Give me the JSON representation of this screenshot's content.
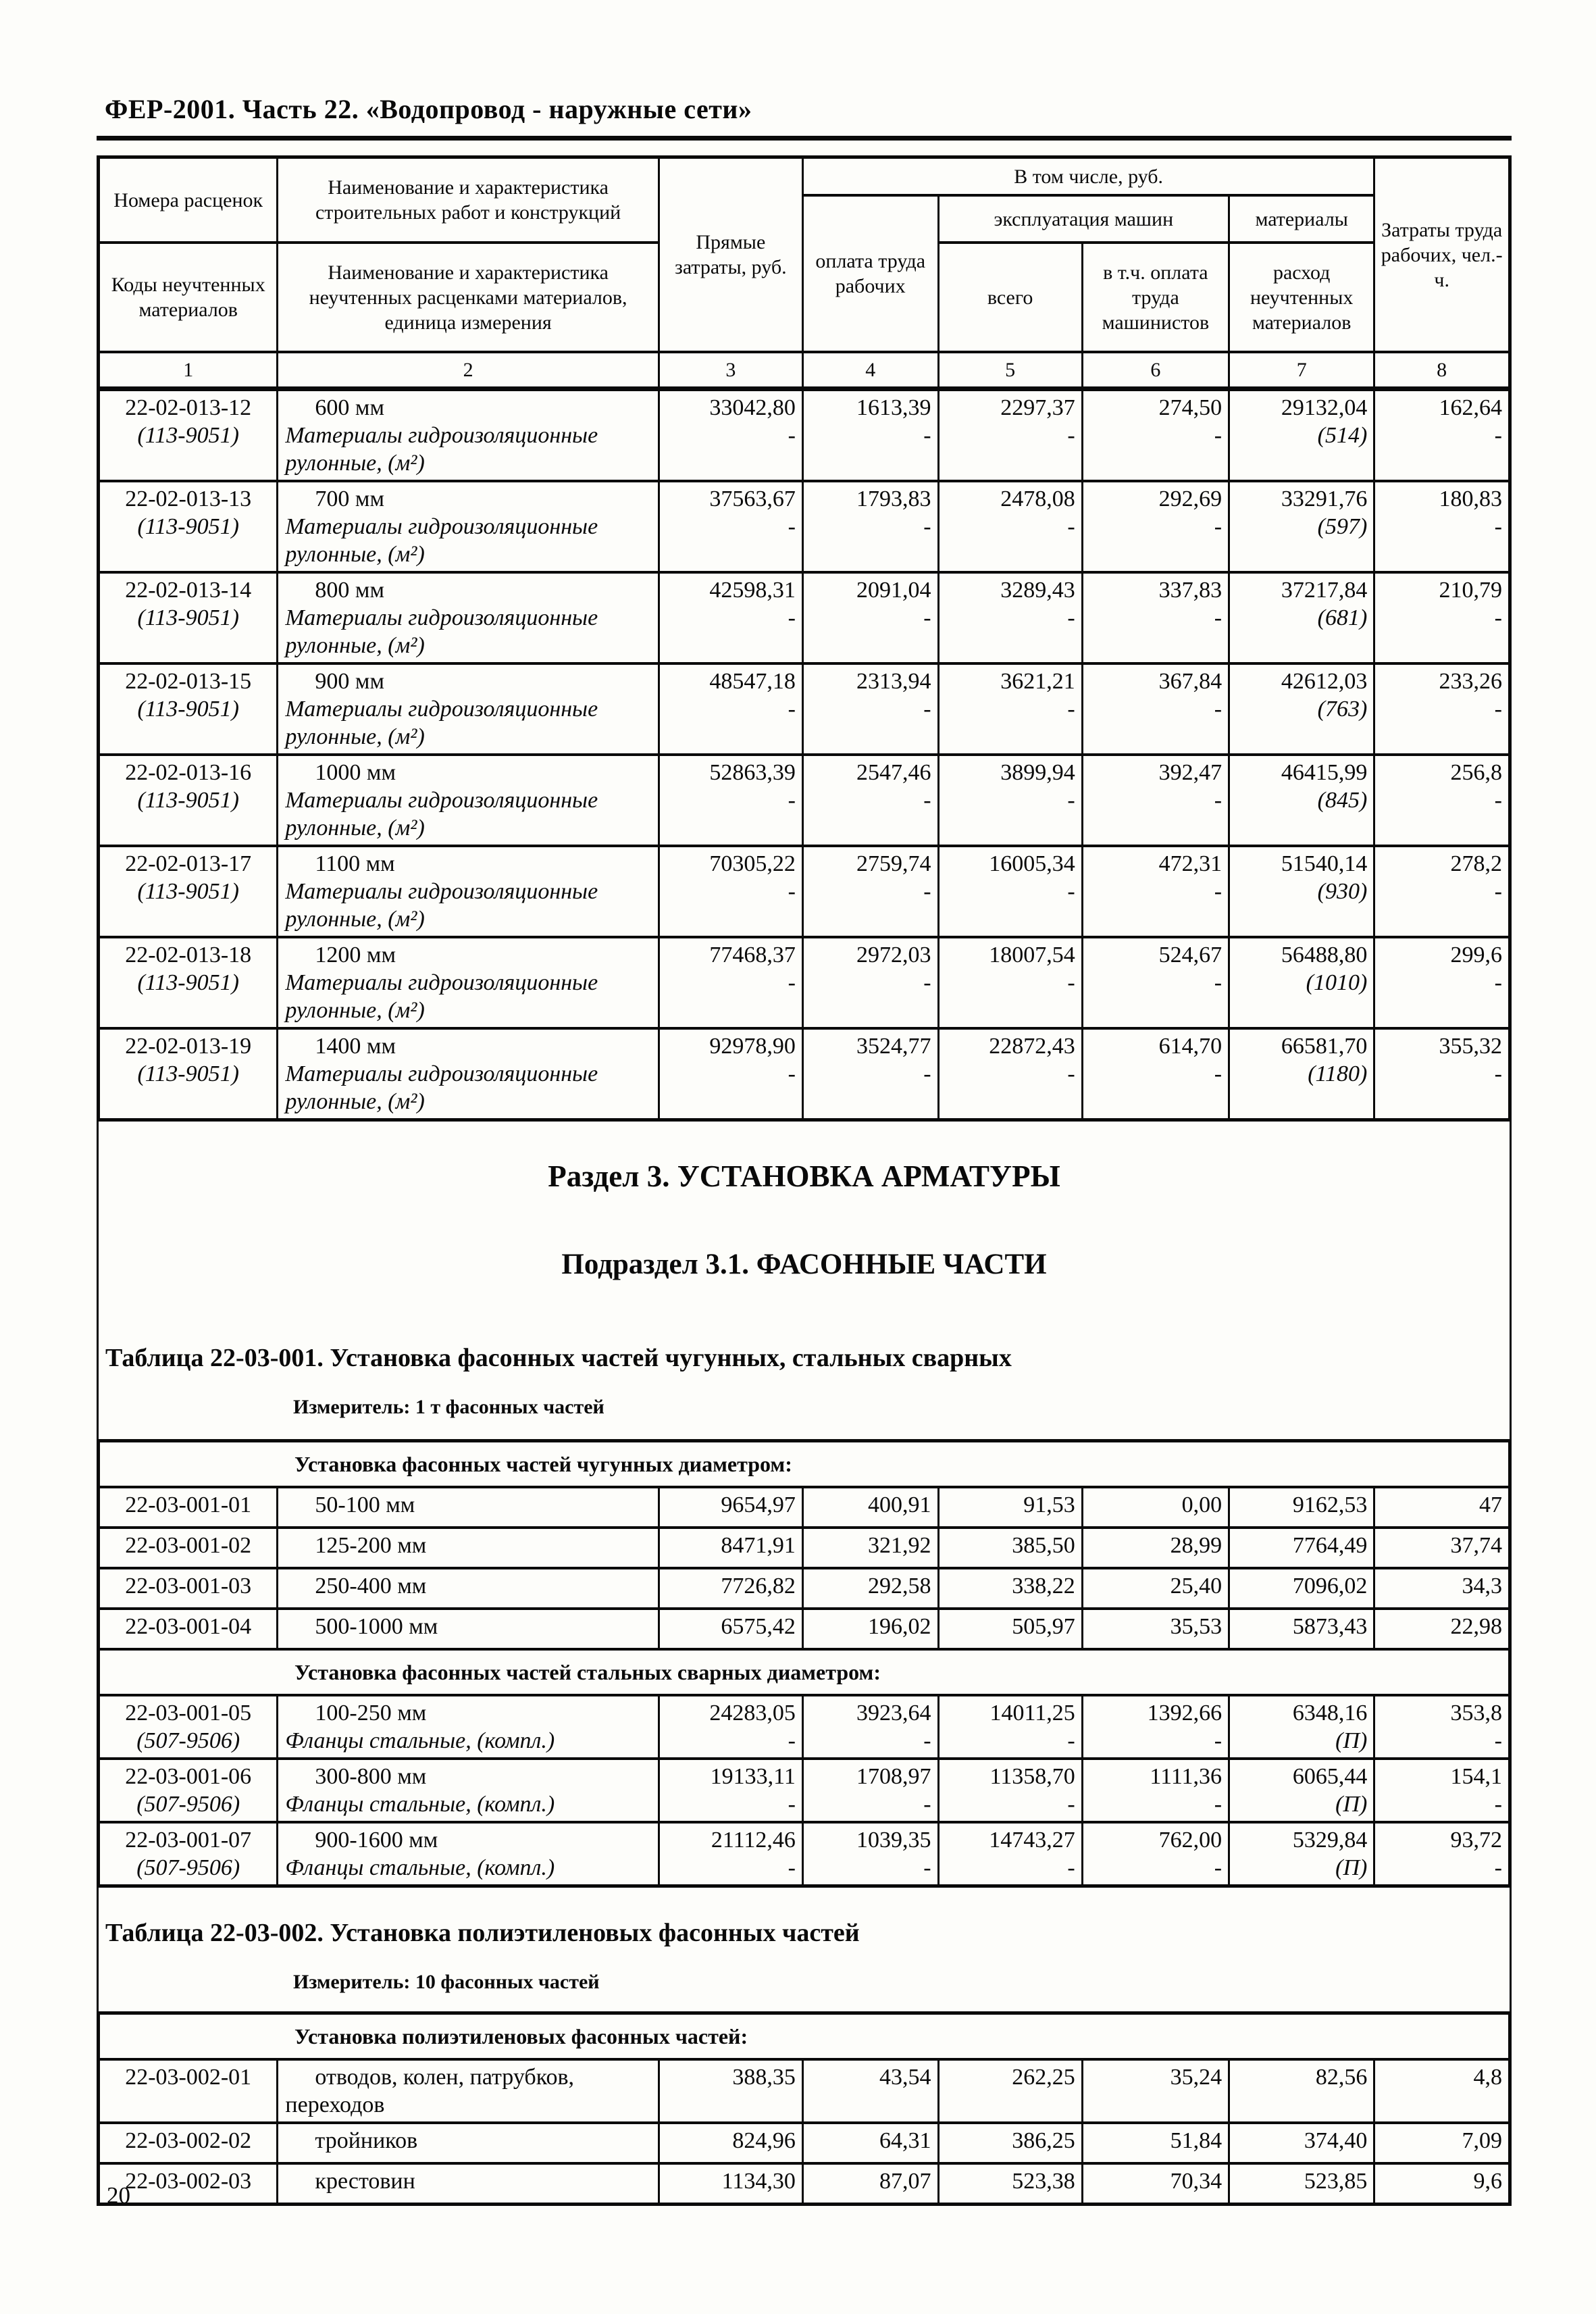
{
  "page": {
    "header": "ФЕР-2001. Часть 22. «Водопровод - наружные сети»",
    "number": "20"
  },
  "rates_table": {
    "header": {
      "col1_top": "Номера расценок",
      "col1_bottom": "Коды неучтенных материалов",
      "col2_top": "Наименование и характеристика строительных работ и конструкций",
      "col2_bottom": "Наименование и характеристика неучтенных расценками материалов, единица измерения",
      "col3": "Прямые затраты, руб.",
      "group4_7": "В том числе, руб.",
      "col4": "оплата труда рабочих",
      "group5_6": "эксплуатация машин",
      "col5": "всего",
      "col6": "в т.ч. оплата труда машинистов",
      "group7": "материалы",
      "col7": "расход неучтенных материалов",
      "col8": "Затраты труда рабочих, чел.-ч.",
      "numbers": [
        "1",
        "2",
        "3",
        "4",
        "5",
        "6",
        "7",
        "8"
      ]
    },
    "rows": [
      {
        "code": "22-02-013-12",
        "code2": "(113-9051)",
        "name": "600 мм",
        "name2": "Материалы гидроизоляционные рулонные, (м²)",
        "values": [
          "33042,80",
          "1613,39",
          "2297,37",
          "274,50",
          "29132,04",
          "162,64"
        ],
        "values2": [
          "-",
          "-",
          "-",
          "-",
          "(514)",
          "-"
        ]
      },
      {
        "code": "22-02-013-13",
        "code2": "(113-9051)",
        "name": "700 мм",
        "name2": "Материалы гидроизоляционные рулонные, (м²)",
        "values": [
          "37563,67",
          "1793,83",
          "2478,08",
          "292,69",
          "33291,76",
          "180,83"
        ],
        "values2": [
          "-",
          "-",
          "-",
          "-",
          "(597)",
          "-"
        ]
      },
      {
        "code": "22-02-013-14",
        "code2": "(113-9051)",
        "name": "800 мм",
        "name2": "Материалы гидроизоляционные рулонные, (м²)",
        "values": [
          "42598,31",
          "2091,04",
          "3289,43",
          "337,83",
          "37217,84",
          "210,79"
        ],
        "values2": [
          "-",
          "-",
          "-",
          "-",
          "(681)",
          "-"
        ]
      },
      {
        "code": "22-02-013-15",
        "code2": "(113-9051)",
        "name": "900 мм",
        "name2": "Материалы гидроизоляционные рулонные, (м²)",
        "values": [
          "48547,18",
          "2313,94",
          "3621,21",
          "367,84",
          "42612,03",
          "233,26"
        ],
        "values2": [
          "-",
          "-",
          "-",
          "-",
          "(763)",
          "-"
        ]
      },
      {
        "code": "22-02-013-16",
        "code2": "(113-9051)",
        "name": "1000 мм",
        "name2": "Материалы гидроизоляционные рулонные, (м²)",
        "values": [
          "52863,39",
          "2547,46",
          "3899,94",
          "392,47",
          "46415,99",
          "256,8"
        ],
        "values2": [
          "-",
          "-",
          "-",
          "-",
          "(845)",
          "-"
        ]
      },
      {
        "code": "22-02-013-17",
        "code2": "(113-9051)",
        "name": "1100 мм",
        "name2": "Материалы гидроизоляционные рулонные, (м²)",
        "values": [
          "70305,22",
          "2759,74",
          "16005,34",
          "472,31",
          "51540,14",
          "278,2"
        ],
        "values2": [
          "-",
          "-",
          "-",
          "-",
          "(930)",
          "-"
        ]
      },
      {
        "code": "22-02-013-18",
        "code2": "(113-9051)",
        "name": "1200 мм",
        "name2": "Материалы гидроизоляционные рулонные, (м²)",
        "values": [
          "77468,37",
          "2972,03",
          "18007,54",
          "524,67",
          "56488,80",
          "299,6"
        ],
        "values2": [
          "-",
          "-",
          "-",
          "-",
          "(1010)",
          "-"
        ]
      },
      {
        "code": "22-02-013-19",
        "code2": "(113-9051)",
        "name": "1400 мм",
        "name2": "Материалы гидроизоляционные рулонные, (м²)",
        "values": [
          "92978,90",
          "3524,77",
          "22872,43",
          "614,70",
          "66581,70",
          "355,32"
        ],
        "values2": [
          "-",
          "-",
          "-",
          "-",
          "(1180)",
          "-"
        ]
      }
    ]
  },
  "section": {
    "title": "Раздел 3. УСТАНОВКА АРМАТУРЫ",
    "subtitle": "Подраздел 3.1. ФАСОННЫЕ ЧАСТИ"
  },
  "table1": {
    "title": "Таблица 22-03-001. Установка фасонных частей чугунных, стальных сварных",
    "meter": "Измеритель: 1 т фасонных частей",
    "groups": [
      {
        "label": "Установка фасонных частей чугунных диаметром:",
        "rows": [
          {
            "code": "22-03-001-01",
            "name": "50-100 мм",
            "values": [
              "9654,97",
              "400,91",
              "91,53",
              "0,00",
              "9162,53",
              "47"
            ]
          },
          {
            "code": "22-03-001-02",
            "name": "125-200 мм",
            "values": [
              "8471,91",
              "321,92",
              "385,50",
              "28,99",
              "7764,49",
              "37,74"
            ]
          },
          {
            "code": "22-03-001-03",
            "name": "250-400 мм",
            "values": [
              "7726,82",
              "292,58",
              "338,22",
              "25,40",
              "7096,02",
              "34,3"
            ]
          },
          {
            "code": "22-03-001-04",
            "name": "500-1000 мм",
            "values": [
              "6575,42",
              "196,02",
              "505,97",
              "35,53",
              "5873,43",
              "22,98"
            ]
          }
        ]
      },
      {
        "label": "Установка фасонных частей стальных сварных диаметром:",
        "rows": [
          {
            "code": "22-03-001-05",
            "code2": "(507-9506)",
            "name": "100-250 мм",
            "name2": "Фланцы стальные, (компл.)",
            "values": [
              "24283,05",
              "3923,64",
              "14011,25",
              "1392,66",
              "6348,16",
              "353,8"
            ],
            "values2": [
              "-",
              "-",
              "-",
              "-",
              "(П)",
              "-"
            ]
          },
          {
            "code": "22-03-001-06",
            "code2": "(507-9506)",
            "name": "300-800 мм",
            "name2": "Фланцы стальные, (компл.)",
            "values": [
              "19133,11",
              "1708,97",
              "11358,70",
              "1111,36",
              "6065,44",
              "154,1"
            ],
            "values2": [
              "-",
              "-",
              "-",
              "-",
              "(П)",
              "-"
            ]
          },
          {
            "code": "22-03-001-07",
            "code2": "(507-9506)",
            "name": "900-1600 мм",
            "name2": "Фланцы стальные, (компл.)",
            "values": [
              "21112,46",
              "1039,35",
              "14743,27",
              "762,00",
              "5329,84",
              "93,72"
            ],
            "values2": [
              "-",
              "-",
              "-",
              "-",
              "(П)",
              "-"
            ]
          }
        ]
      }
    ]
  },
  "table2": {
    "title": "Таблица 22-03-002. Установка полиэтиленовых фасонных частей",
    "meter": "Измеритель: 10 фасонных частей",
    "groups": [
      {
        "label": "Установка полиэтиленовых фасонных частей:",
        "rows": [
          {
            "code": "22-03-002-01",
            "name": "отводов, колен, патрубков,",
            "name_cont": "переходов",
            "values": [
              "388,35",
              "43,54",
              "262,25",
              "35,24",
              "82,56",
              "4,8"
            ]
          },
          {
            "code": "22-03-002-02",
            "name": "тройников",
            "values": [
              "824,96",
              "64,31",
              "386,25",
              "51,84",
              "374,40",
              "7,09"
            ]
          },
          {
            "code": "22-03-002-03",
            "name": "крестовин",
            "values": [
              "1134,30",
              "87,07",
              "523,38",
              "70,34",
              "523,85",
              "9,6"
            ]
          }
        ]
      }
    ]
  }
}
